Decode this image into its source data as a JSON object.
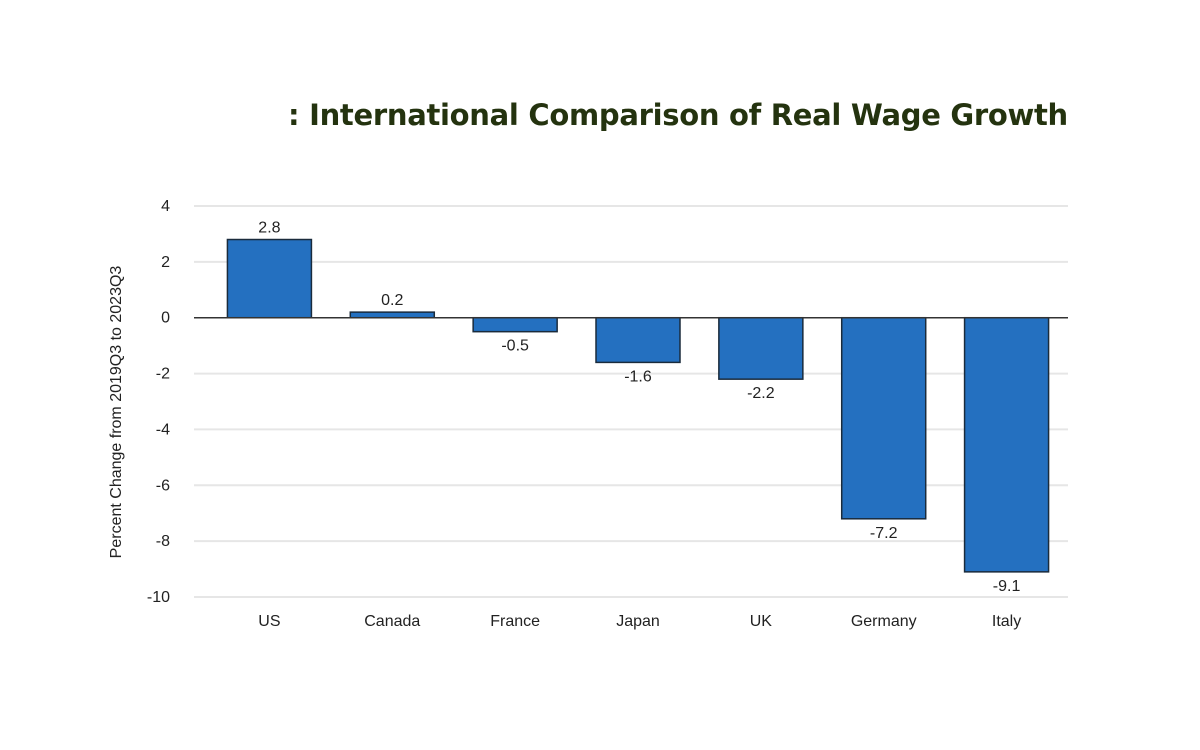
{
  "chart_data": {
    "type": "bar",
    "title": ": International Comparison of Real Wage Growth",
    "xlabel": "",
    "ylabel": "Percent Change from 2019Q3 to 2023Q3",
    "categories": [
      "US",
      "Canada",
      "France",
      "Japan",
      "UK",
      "Germany",
      "Italy"
    ],
    "values": [
      2.8,
      0.2,
      -0.5,
      -1.6,
      -2.2,
      -7.2,
      -9.1
    ],
    "data_labels": [
      "2.8",
      "0.2",
      "-0.5",
      "-1.6",
      "-2.2",
      "-7.2",
      "-9.1"
    ],
    "ylim": [
      -10,
      4
    ],
    "yticks": [
      4,
      2,
      0,
      -2,
      -4,
      -6,
      -8,
      -10
    ],
    "ytick_labels": [
      "4",
      "2",
      "0",
      "-2",
      "-4",
      "-6",
      "-8",
      "-10"
    ],
    "grid": true,
    "legend": "none",
    "colors": {
      "bar_fill": "#2470c0",
      "bar_stroke": "#1a2b3c",
      "grid": "#e6e6e6",
      "zero_line": "#333333",
      "title": "#24330f"
    }
  }
}
